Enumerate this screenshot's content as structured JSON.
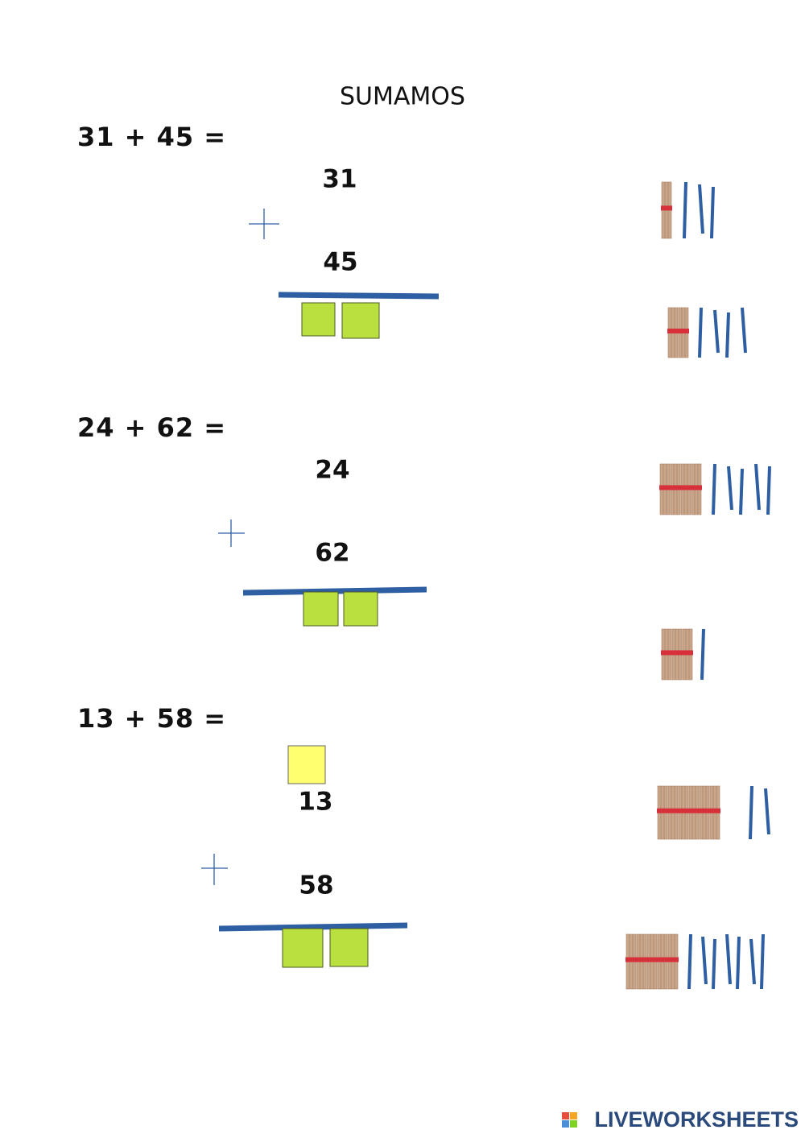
{
  "header": {
    "title": "SUMAMOS"
  },
  "problems": [
    {
      "expression": "31 + 45 =",
      "addend1": "31",
      "addend2": "45"
    },
    {
      "expression": "24 + 62 =",
      "addend1": "24",
      "addend2": "62"
    },
    {
      "expression": "13 + 58 =",
      "addend1": "13",
      "addend2": "58"
    }
  ],
  "footer": {
    "logo": "LIVEWORKSHEETS"
  }
}
